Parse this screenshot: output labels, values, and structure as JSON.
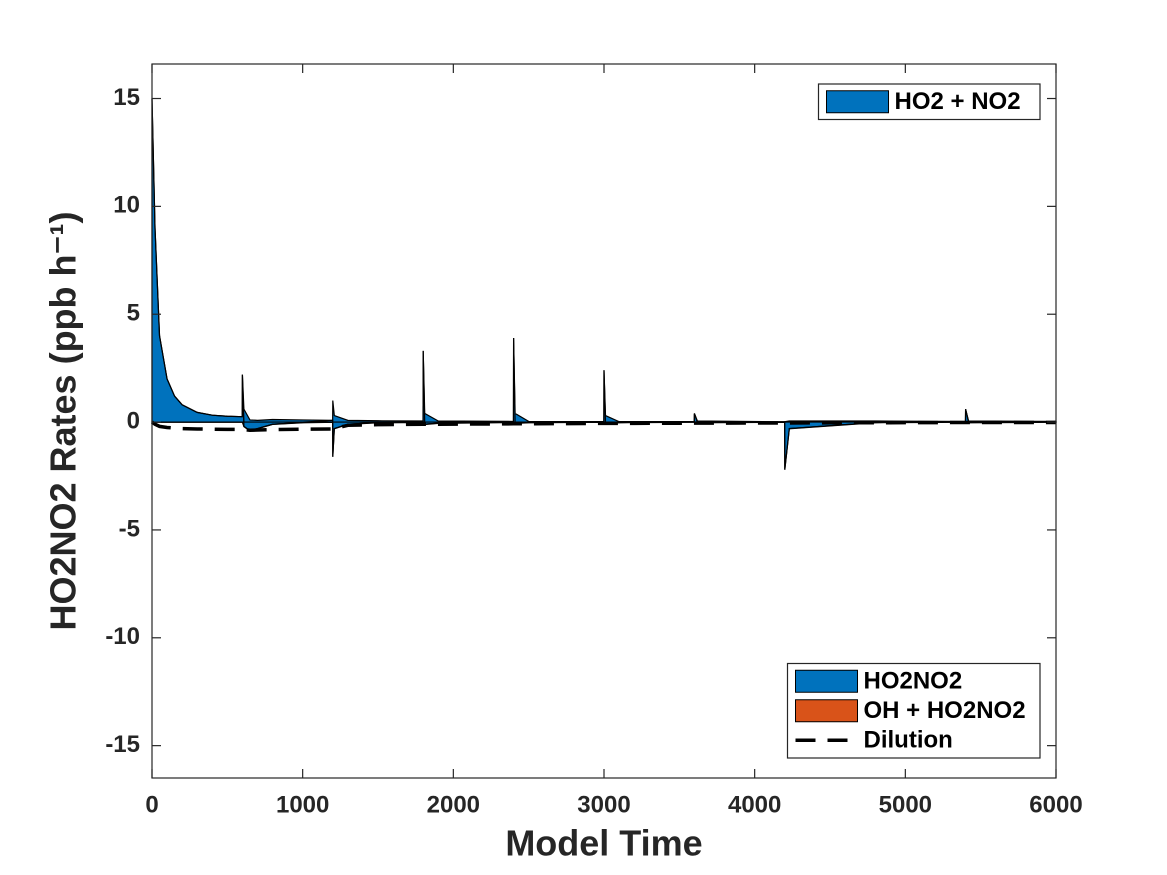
{
  "chart_data": {
    "type": "area",
    "xlabel": "Model Time",
    "ylabel": "HO2NO2 Rates (ppb h⁻¹)",
    "x": [
      0,
      20,
      50,
      100,
      150,
      200,
      300,
      400,
      500,
      599,
      600,
      610,
      650,
      700,
      800,
      1000,
      1199,
      1200,
      1210,
      1300,
      1500,
      1799,
      1800,
      1810,
      1900,
      2399,
      2400,
      2410,
      2500,
      2999,
      3000,
      3010,
      3100,
      3599,
      3600,
      3620,
      4199,
      4200,
      4230,
      4800,
      5399,
      5400,
      5420,
      6000
    ],
    "series": [
      {
        "name": "HO2 + NO2",
        "color": "#0072bd",
        "legend": "upper right",
        "values": [
          15,
          9,
          4,
          2,
          1.2,
          0.8,
          0.45,
          0.32,
          0.27,
          0.25,
          2.2,
          0.6,
          0.1,
          0.08,
          0.12,
          0.1,
          0.08,
          1.0,
          0.3,
          0.08,
          0.06,
          0.05,
          3.3,
          0.4,
          0.05,
          0.03,
          3.9,
          0.4,
          0.03,
          0.02,
          2.4,
          0.3,
          0.02,
          0.02,
          0.4,
          0.05,
          0.01,
          0.02,
          0.05,
          0.05,
          0.03,
          0.6,
          0.05,
          0.03
        ]
      },
      {
        "name": "HO2NO2",
        "color": "#0072bd",
        "legend": "lower right",
        "values": [
          0,
          0,
          0,
          0,
          0,
          0,
          0,
          0,
          0,
          0,
          0,
          -0.2,
          -0.4,
          -0.3,
          -0.1,
          -0.02,
          0,
          -1.6,
          -0.3,
          -0.1,
          -0.02,
          -0.01,
          0,
          -0.1,
          -0.05,
          -0.01,
          0,
          -0.05,
          -0.02,
          0,
          0,
          -0.05,
          -0.02,
          0,
          0,
          -0.02,
          0,
          -2.2,
          -0.3,
          -0.02,
          0,
          0,
          -0.02,
          0
        ]
      },
      {
        "name": "OH + HO2NO2",
        "color": "#d95319",
        "legend": "lower right",
        "values": [
          -0.01,
          -0.01,
          -0.01,
          -0.01,
          -0.01,
          -0.01,
          -0.01,
          -0.01,
          -0.01,
          -0.01,
          -0.01,
          -0.01,
          -0.01,
          -0.01,
          -0.01,
          -0.01,
          -0.01,
          -0.01,
          -0.01,
          -0.01,
          -0.01,
          -0.01,
          -0.01,
          -0.01,
          -0.01,
          -0.01,
          -0.01,
          -0.01,
          -0.01,
          -0.01,
          -0.01,
          -0.01,
          -0.01,
          -0.01,
          -0.01,
          -0.01,
          -0.01,
          -0.01,
          -0.01,
          -0.01,
          -0.01,
          -0.01,
          -0.01,
          -0.01
        ]
      },
      {
        "name": "Dilution",
        "color": "#000000",
        "legend": "lower right",
        "mark": "dashed-line",
        "values": [
          0,
          -0.1,
          -0.2,
          -0.25,
          -0.28,
          -0.3,
          -0.32,
          -0.33,
          -0.34,
          -0.34,
          -0.34,
          -0.35,
          -0.38,
          -0.37,
          -0.35,
          -0.33,
          -0.32,
          -0.3,
          -0.3,
          -0.15,
          -0.12,
          -0.1,
          -0.1,
          -0.1,
          -0.1,
          -0.08,
          -0.08,
          -0.08,
          -0.08,
          -0.06,
          -0.06,
          -0.06,
          -0.06,
          -0.05,
          -0.05,
          -0.05,
          -0.04,
          -0.04,
          -0.04,
          -0.03,
          -0.02,
          -0.02,
          -0.02,
          -0.02
        ]
      }
    ],
    "xlim": [
      0,
      6000
    ],
    "xticks": [
      0,
      1000,
      2000,
      3000,
      4000,
      5000,
      6000
    ],
    "ylim": [
      -16.5,
      16.6
    ],
    "yticks": [
      -15,
      -10,
      -5,
      0,
      5,
      10,
      15
    ]
  }
}
